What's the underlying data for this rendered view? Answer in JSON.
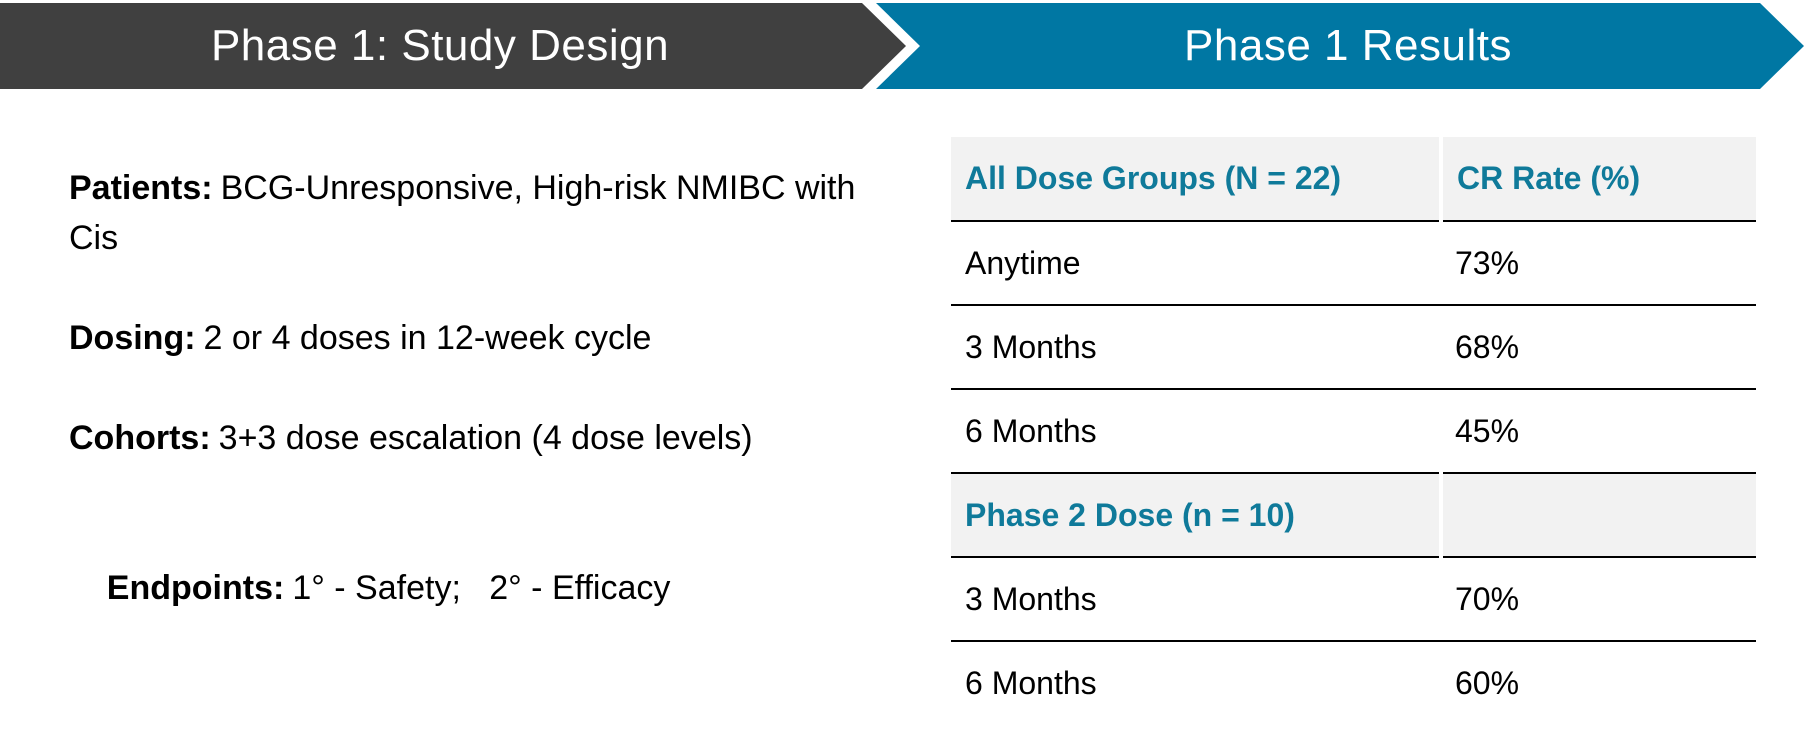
{
  "header": {
    "left_title": "Phase 1: Study Design",
    "right_title": "Phase 1 Results",
    "left_color": "#404040",
    "right_color": "#0077a3"
  },
  "design": {
    "items": [
      {
        "label": "Patients:",
        "text": "BCG-Unresponsive, High-risk NMIBC with Cis"
      },
      {
        "label": "Dosing:",
        "text": "2 or 4 doses in 12-week cycle"
      },
      {
        "label": "Cohorts:",
        "text": "3+3 dose escalation (4 dose levels)"
      },
      {
        "label": "Endpoints:",
        "text": "1° - Safety;   2° - Efficacy"
      }
    ]
  },
  "results": {
    "header1": {
      "col1": "All Dose Groups (N = 22)",
      "col2": "CR Rate (%)"
    },
    "group1": [
      {
        "timepoint": "Anytime",
        "rate": "73%"
      },
      {
        "timepoint": "3 Months",
        "rate": "68%"
      },
      {
        "timepoint": "6 Months",
        "rate": "45%"
      }
    ],
    "header2": {
      "col1": "Phase 2 Dose (n = 10)",
      "col2": ""
    },
    "group2": [
      {
        "timepoint": "3 Months",
        "rate": "70%"
      },
      {
        "timepoint": "6 Months",
        "rate": "60%"
      }
    ]
  }
}
